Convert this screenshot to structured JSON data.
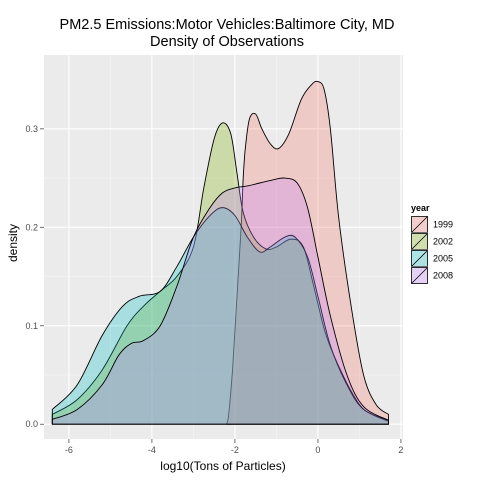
{
  "chart_data": {
    "type": "area",
    "title": "PM2.5 Emissions:Motor Vehicles:Baltimore City, MD",
    "subtitle": "Density of Observations",
    "xlabel": "log10(Tons of Particles)",
    "ylabel": "density",
    "xlim": [
      -6.6,
      2.05
    ],
    "ylim": [
      -0.015,
      0.375
    ],
    "xticks": [
      -6,
      -4,
      -2,
      0,
      2
    ],
    "yticks": [
      0.0,
      0.1,
      0.2,
      0.3
    ],
    "ytick_labels": [
      "0.0",
      "0.1",
      "0.2",
      "0.3"
    ],
    "grid": true,
    "legend": {
      "title": "year",
      "placement": "right"
    },
    "series": [
      {
        "name": "1999",
        "color": "#F8766D",
        "points": [
          [
            -2.2,
            0.0
          ],
          [
            -2.15,
            0.01
          ],
          [
            -2.05,
            0.06
          ],
          [
            -1.95,
            0.13
          ],
          [
            -1.85,
            0.2
          ],
          [
            -1.8,
            0.25
          ],
          [
            -1.75,
            0.28
          ],
          [
            -1.65,
            0.31
          ],
          [
            -1.5,
            0.315
          ],
          [
            -1.35,
            0.3
          ],
          [
            -1.15,
            0.285
          ],
          [
            -0.95,
            0.28
          ],
          [
            -0.7,
            0.295
          ],
          [
            -0.4,
            0.33
          ],
          [
            -0.15,
            0.345
          ],
          [
            0.0,
            0.348
          ],
          [
            0.15,
            0.34
          ],
          [
            0.3,
            0.3
          ],
          [
            0.5,
            0.21
          ],
          [
            0.8,
            0.12
          ],
          [
            1.1,
            0.05
          ],
          [
            1.4,
            0.02
          ],
          [
            1.7,
            0.01
          ]
        ]
      },
      {
        "name": "2002",
        "color": "#7CAE00",
        "points": [
          [
            -6.4,
            0.01
          ],
          [
            -5.8,
            0.025
          ],
          [
            -5.2,
            0.055
          ],
          [
            -4.6,
            0.1
          ],
          [
            -4.2,
            0.12
          ],
          [
            -3.8,
            0.135
          ],
          [
            -3.4,
            0.15
          ],
          [
            -3.0,
            0.18
          ],
          [
            -2.75,
            0.24
          ],
          [
            -2.5,
            0.29
          ],
          [
            -2.3,
            0.306
          ],
          [
            -2.1,
            0.295
          ],
          [
            -1.95,
            0.255
          ],
          [
            -1.8,
            0.215
          ],
          [
            -1.55,
            0.19
          ],
          [
            -1.25,
            0.178
          ],
          [
            -1.0,
            0.18
          ],
          [
            -0.65,
            0.188
          ],
          [
            -0.35,
            0.18
          ],
          [
            -0.1,
            0.14
          ],
          [
            0.2,
            0.09
          ],
          [
            0.6,
            0.05
          ],
          [
            1.0,
            0.02
          ],
          [
            1.3,
            0.01
          ],
          [
            1.7,
            0.003
          ]
        ]
      },
      {
        "name": "2005",
        "color": "#00BFC4",
        "points": [
          [
            -6.4,
            0.015
          ],
          [
            -5.8,
            0.04
          ],
          [
            -5.2,
            0.09
          ],
          [
            -4.7,
            0.12
          ],
          [
            -4.3,
            0.13
          ],
          [
            -3.8,
            0.135
          ],
          [
            -3.4,
            0.16
          ],
          [
            -3.0,
            0.19
          ],
          [
            -2.6,
            0.212
          ],
          [
            -2.3,
            0.22
          ],
          [
            -2.0,
            0.212
          ],
          [
            -1.7,
            0.19
          ],
          [
            -1.4,
            0.175
          ],
          [
            -1.15,
            0.18
          ],
          [
            -0.8,
            0.19
          ],
          [
            -0.55,
            0.19
          ],
          [
            -0.25,
            0.17
          ],
          [
            0.0,
            0.13
          ],
          [
            0.3,
            0.08
          ],
          [
            0.7,
            0.04
          ],
          [
            1.1,
            0.015
          ],
          [
            1.7,
            0.004
          ]
        ]
      },
      {
        "name": "2008",
        "color": "#C77CFF",
        "points": [
          [
            -6.4,
            0.005
          ],
          [
            -5.8,
            0.015
          ],
          [
            -5.2,
            0.04
          ],
          [
            -4.8,
            0.07
          ],
          [
            -4.5,
            0.082
          ],
          [
            -4.2,
            0.085
          ],
          [
            -3.8,
            0.1
          ],
          [
            -3.4,
            0.14
          ],
          [
            -3.0,
            0.19
          ],
          [
            -2.6,
            0.22
          ],
          [
            -2.3,
            0.235
          ],
          [
            -2.0,
            0.24
          ],
          [
            -1.7,
            0.242
          ],
          [
            -1.4,
            0.245
          ],
          [
            -1.1,
            0.248
          ],
          [
            -0.8,
            0.25
          ],
          [
            -0.5,
            0.245
          ],
          [
            -0.25,
            0.22
          ],
          [
            0.0,
            0.17
          ],
          [
            0.3,
            0.11
          ],
          [
            0.7,
            0.05
          ],
          [
            1.1,
            0.018
          ],
          [
            1.7,
            0.004
          ]
        ]
      }
    ]
  }
}
